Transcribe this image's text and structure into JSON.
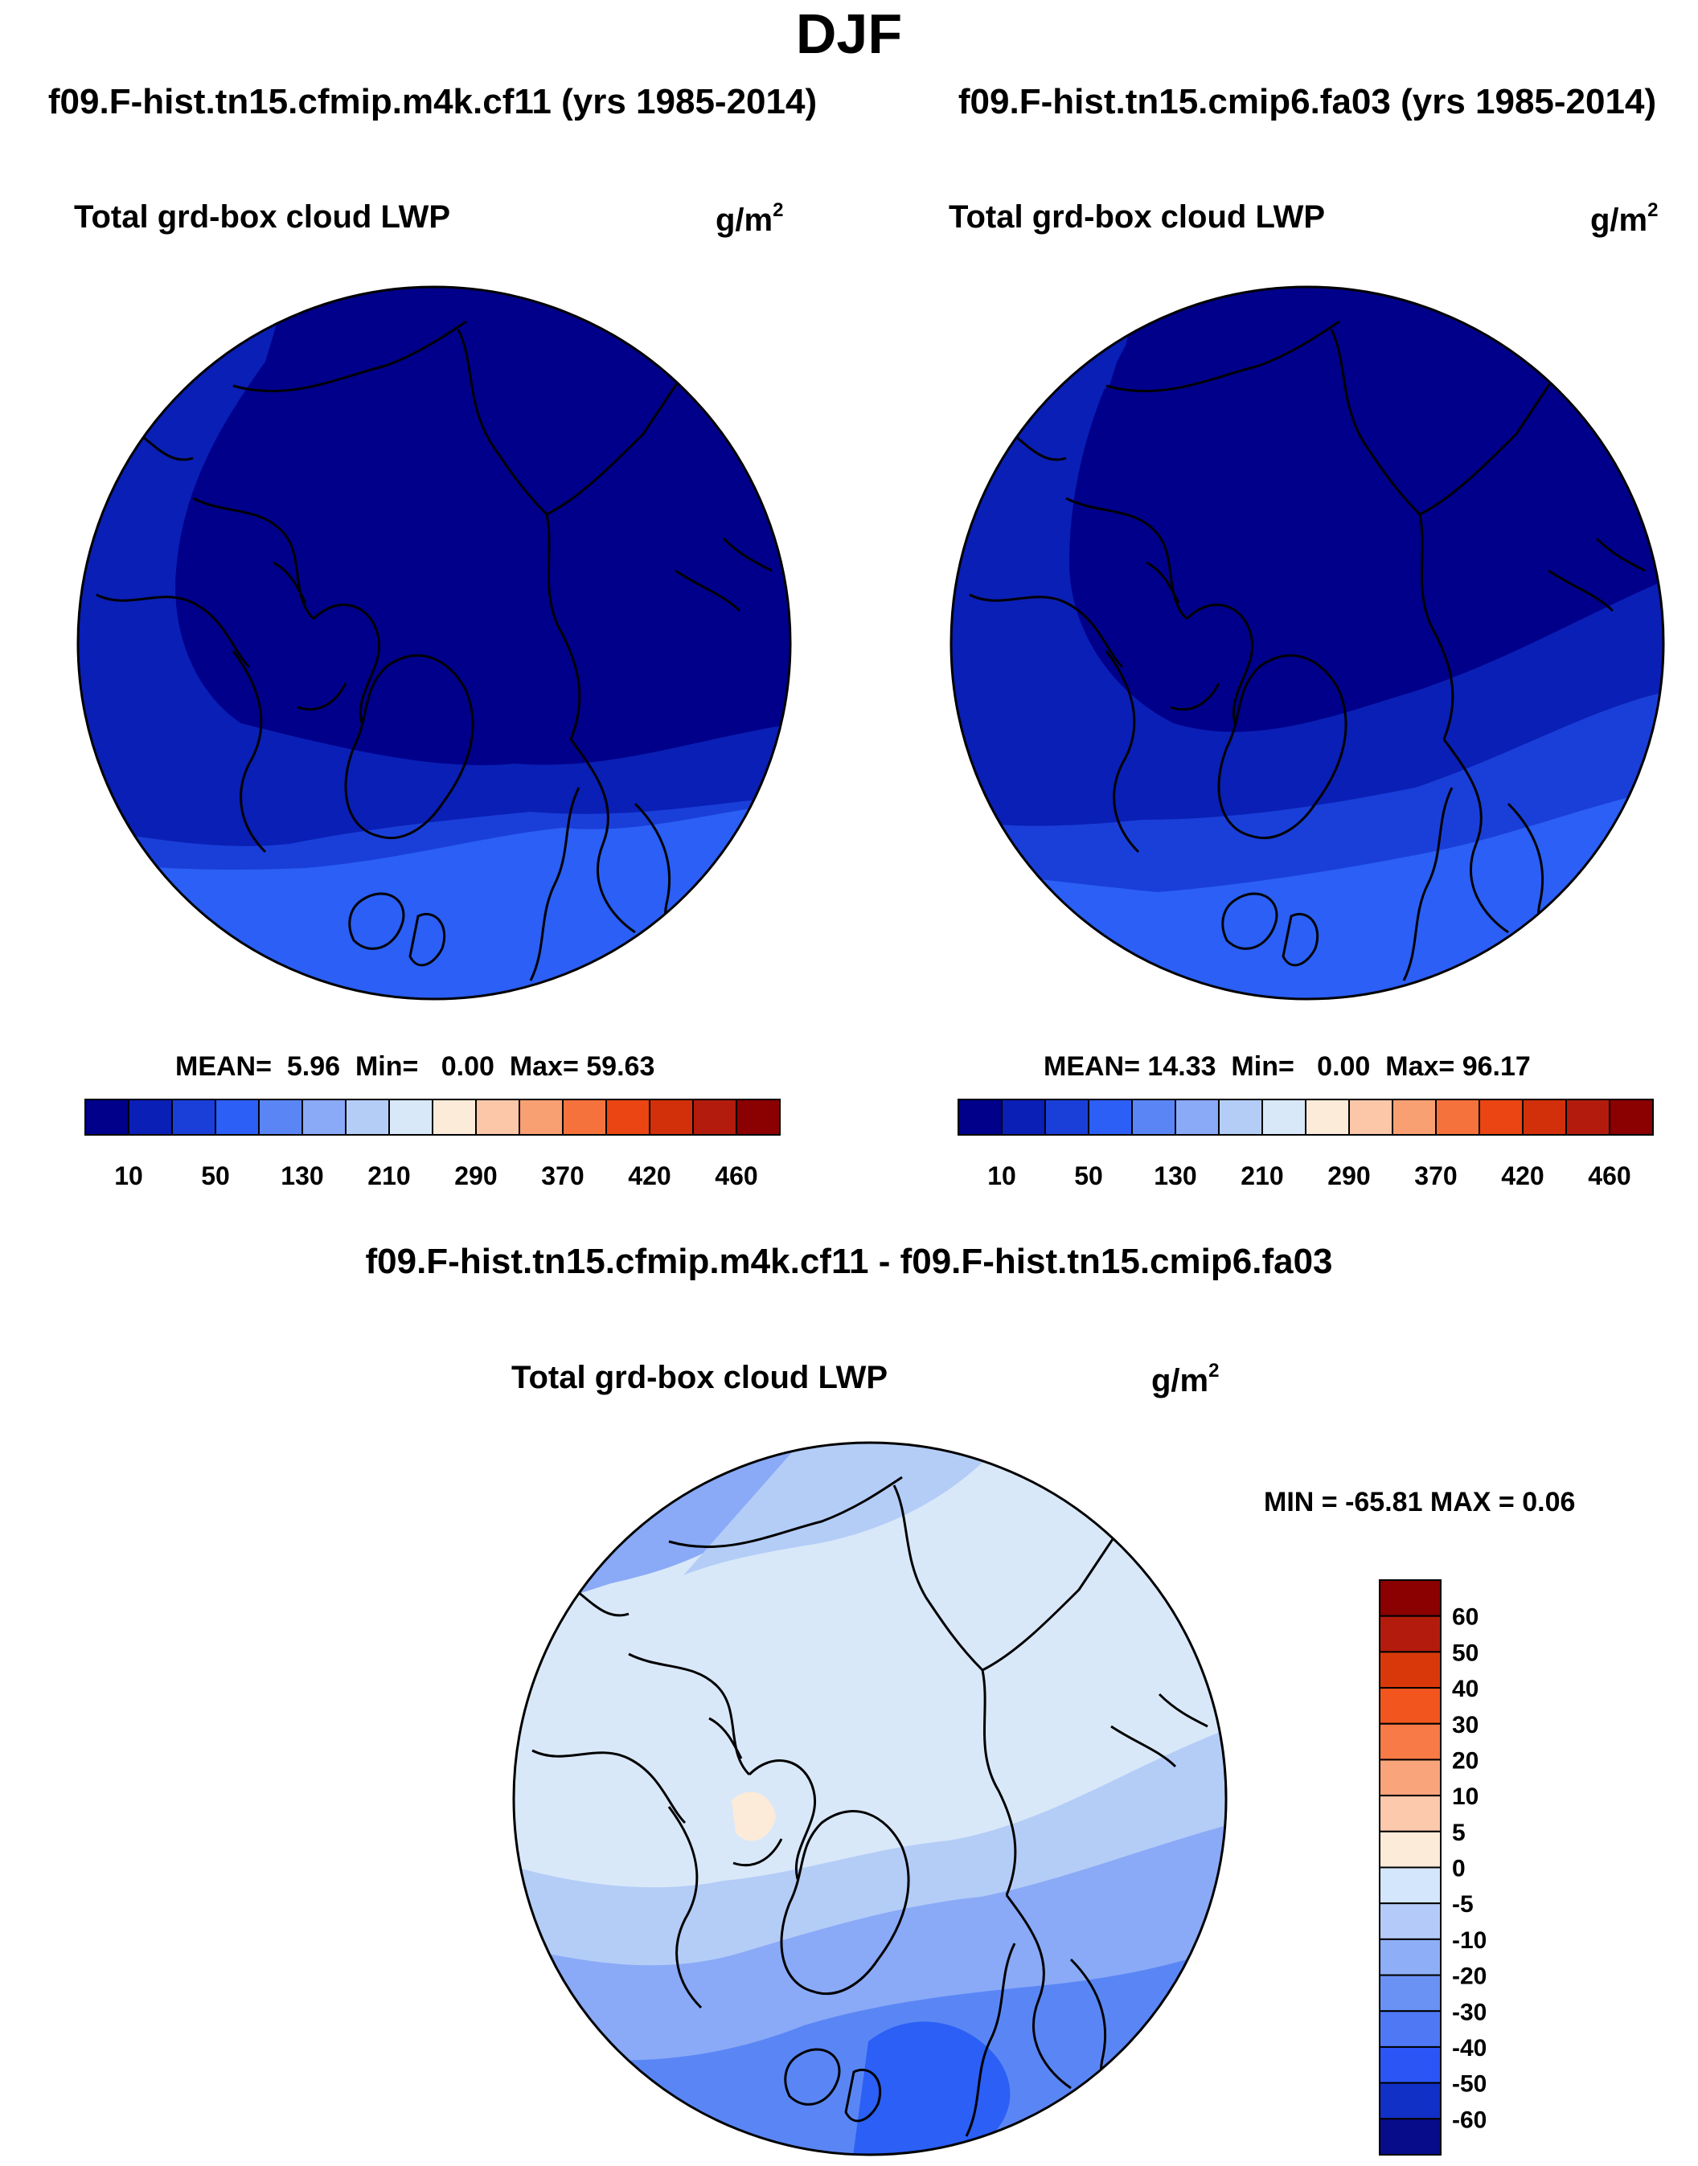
{
  "main_title": "DJF",
  "panels": [
    {
      "title": "f09.F-hist.tn15.cfmip.m4k.cf11 (yrs 1985-2014)",
      "variable": "Total grd-box cloud LWP",
      "units": "g/m",
      "units_exp": "2",
      "stats": {
        "mean_label": "MEAN=",
        "mean": "5.96",
        "min_label": "Min=",
        "min": "0.00",
        "max_label": "Max=",
        "max": "59.63"
      }
    },
    {
      "title": "f09.F-hist.tn15.cmip6.fa03 (yrs 1985-2014)",
      "variable": "Total grd-box cloud LWP",
      "units": "g/m",
      "units_exp": "2",
      "stats": {
        "mean_label": "MEAN=",
        "mean": "14.33",
        "min_label": "Min=",
        "min": "0.00",
        "max_label": "Max=",
        "max": "96.17"
      }
    }
  ],
  "difference": {
    "title": "f09.F-hist.tn15.cfmip.m4k.cf11 - f09.F-hist.tn15.cmip6.fa03",
    "variable": "Total grd-box cloud LWP",
    "units": "g/m",
    "units_exp": "2",
    "minmax_text": "MIN = -65.81 MAX =   0.06"
  },
  "colorbars": {
    "absolute": {
      "colors": [
        "#00008b",
        "#0a1fb5",
        "#1a3fd9",
        "#2b5ff5",
        "#5a86f5",
        "#8aaaf7",
        "#b4cdf7",
        "#d9e8f9",
        "#fcebd9",
        "#fcc7a9",
        "#f9a073",
        "#f5723c",
        "#ea4512",
        "#d1300a",
        "#b31c0c",
        "#8b0000"
      ],
      "labels": [
        "10",
        "50",
        "130",
        "210",
        "290",
        "370",
        "420",
        "460"
      ]
    },
    "difference": {
      "colors": [
        "#8b0000",
        "#b31c0c",
        "#d9390a",
        "#f2561e",
        "#f77a47",
        "#f9a47a",
        "#fcc9ad",
        "#fcebd9",
        "#d4e6fb",
        "#b4cbfa",
        "#8eaef7",
        "#6a92f5",
        "#4f78f5",
        "#2b55f5",
        "#1130c5",
        "#060c8a"
      ],
      "labels": [
        "60",
        "50",
        "40",
        "30",
        "20",
        "10",
        "5",
        "0",
        "-5",
        "-10",
        "-20",
        "-30",
        "-40",
        "-50",
        "-60"
      ]
    }
  },
  "map_colors": {
    "dark": "#0a1fb5",
    "darkest": "#00008b",
    "mid": "#1a3fd9",
    "light": "#2b5ff5",
    "diff_base": "#d9e8f9",
    "diff_l1": "#b4cdf7",
    "diff_l2": "#8aaaf7",
    "diff_l3": "#5a86f5",
    "diff_l4": "#2b5ff5",
    "diff_pos": "#fcebd9"
  }
}
